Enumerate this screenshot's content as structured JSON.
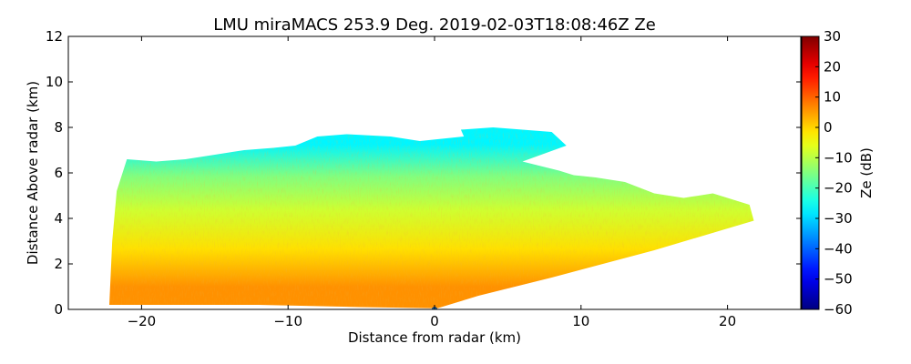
{
  "chart_data": {
    "type": "heatmap",
    "title": "LMU miraMACS 253.9 Deg. 2019-02-03T18:08:46Z  Ze",
    "xlabel": "Distance from radar (km)",
    "ylabel": "Distance Above radar  (km)",
    "xlim": [
      -25,
      25
    ],
    "ylim": [
      0,
      12
    ],
    "x_ticks": [
      -20,
      -10,
      0,
      10,
      20
    ],
    "x_tick_labels": [
      "−20",
      "−10",
      "0",
      "10",
      "20"
    ],
    "y_ticks": [
      0,
      2,
      4,
      6,
      8,
      10,
      12
    ],
    "y_tick_labels": [
      "0",
      "2",
      "4",
      "6",
      "8",
      "10",
      "12"
    ],
    "colorbar": {
      "label": "Ze (dB)",
      "colormap": "jet",
      "range": [
        -60,
        30
      ],
      "ticks": [
        -60,
        -50,
        -40,
        -30,
        -20,
        -10,
        0,
        10,
        20,
        30
      ],
      "tick_labels": [
        "−60",
        "−50",
        "−40",
        "−30",
        "−20",
        "−10",
        "0",
        "10",
        "20",
        "30"
      ]
    },
    "echo_region": {
      "outline_km": [
        [
          -22.2,
          0.2
        ],
        [
          -22.0,
          3.0
        ],
        [
          -21.7,
          5.2
        ],
        [
          -21.0,
          6.6
        ],
        [
          -19,
          6.5
        ],
        [
          -17,
          6.6
        ],
        [
          -15,
          6.8
        ],
        [
          -13,
          7.0
        ],
        [
          -11,
          7.1
        ],
        [
          -9.5,
          7.2
        ],
        [
          -8.0,
          7.6
        ],
        [
          -6.0,
          7.7
        ],
        [
          -3.0,
          7.6
        ],
        [
          -1.0,
          7.4
        ],
        [
          0.5,
          7.5
        ],
        [
          2.0,
          7.6
        ],
        [
          1.8,
          7.9
        ],
        [
          4.0,
          8.0
        ],
        [
          6.0,
          7.9
        ],
        [
          8.0,
          7.8
        ],
        [
          9.0,
          7.2
        ],
        [
          6.0,
          6.5
        ],
        [
          8.5,
          6.1
        ],
        [
          9.5,
          5.9
        ],
        [
          11.0,
          5.8
        ],
        [
          13.0,
          5.6
        ],
        [
          15.0,
          5.1
        ],
        [
          17.0,
          4.9
        ],
        [
          19.0,
          5.1
        ],
        [
          21.5,
          4.6
        ],
        [
          21.8,
          3.9
        ],
        [
          15.0,
          2.6
        ],
        [
          8.0,
          1.4
        ],
        [
          3.0,
          0.6
        ],
        [
          0.2,
          0.05
        ],
        [
          -5.0,
          0.1
        ],
        [
          -12.0,
          0.2
        ],
        [
          -22.2,
          0.2
        ]
      ],
      "layers_dbz": [
        {
          "height_km": [
            0.2,
            1.8
          ],
          "ze_db": 6
        },
        {
          "height_km": [
            1.8,
            3.5
          ],
          "ze_db": -1
        },
        {
          "height_km": [
            3.5,
            5.2
          ],
          "ze_db": -8
        },
        {
          "height_km": [
            5.2,
            6.5
          ],
          "ze_db": -15
        },
        {
          "height_km": [
            6.5,
            8.0
          ],
          "ze_db": -27
        }
      ],
      "radar_position_km": [
        0,
        0
      ]
    }
  }
}
